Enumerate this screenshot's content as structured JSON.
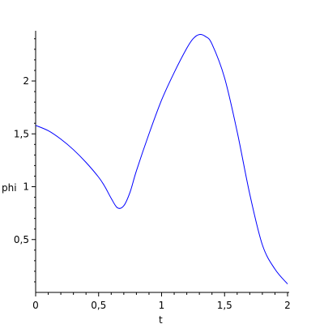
{
  "chart_data": {
    "type": "line",
    "xlabel": "t",
    "ylabel": "phi",
    "xlim": [
      0,
      2
    ],
    "ylim": [
      0,
      2.5
    ],
    "x_ticks": [
      {
        "value": 0,
        "label": "0"
      },
      {
        "value": 0.5,
        "label": "0,5"
      },
      {
        "value": 1,
        "label": "1"
      },
      {
        "value": 1.5,
        "label": "1,5"
      },
      {
        "value": 2,
        "label": "2"
      }
    ],
    "y_ticks": [
      {
        "value": 0.5,
        "label": "0,5"
      },
      {
        "value": 1,
        "label": "1"
      },
      {
        "value": 1.5,
        "label": "1,5"
      },
      {
        "value": 2,
        "label": "2"
      }
    ],
    "line_color": "#0000ff",
    "axis_color": "#000000",
    "grid": false,
    "series": [
      {
        "x": [
          0,
          0.1,
          0.2,
          0.3,
          0.4,
          0.5,
          0.55,
          0.6,
          0.65,
          0.7,
          0.75,
          0.8,
          0.9,
          1.0,
          1.1,
          1.2,
          1.25,
          1.3,
          1.35,
          1.4,
          1.5,
          1.6,
          1.7,
          1.8,
          1.9,
          2.0
        ],
        "y": [
          1.58,
          1.53,
          1.45,
          1.35,
          1.23,
          1.09,
          1.0,
          0.89,
          0.8,
          0.82,
          0.95,
          1.15,
          1.5,
          1.82,
          2.08,
          2.31,
          2.4,
          2.44,
          2.42,
          2.35,
          2.03,
          1.52,
          0.93,
          0.45,
          0.22,
          0.08
        ]
      }
    ]
  }
}
